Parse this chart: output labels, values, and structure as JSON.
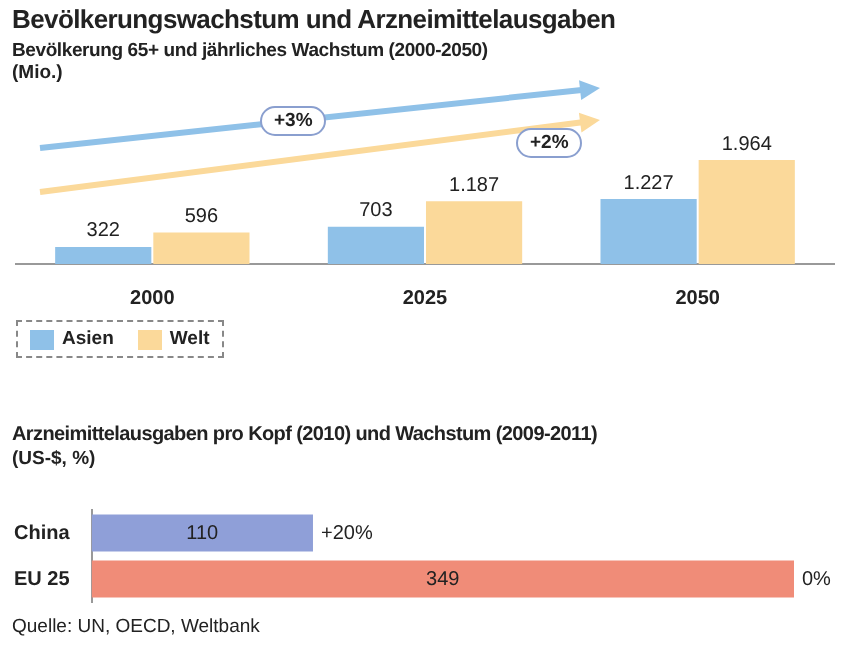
{
  "chart_data": [
    {
      "type": "bar",
      "title": "Bevölkerungswachstum und Arzneimittelausgaben",
      "subtitle": "Bevölkerung 65+ und jährliches Wachstum (2000-2050)",
      "ylabel": "(Mio.)",
      "categories": [
        "2000",
        "2025",
        "2050"
      ],
      "series": [
        {
          "name": "Asien",
          "color": "#8fc1e8",
          "values": [
            322,
            703,
            1227
          ],
          "value_labels": [
            "322",
            "703",
            "1.227"
          ]
        },
        {
          "name": "Welt",
          "color": "#fbd99a",
          "values": [
            596,
            1187,
            1964
          ],
          "value_labels": [
            "596",
            "1.187",
            "1.964"
          ]
        }
      ],
      "annotations": [
        "+3%",
        "+2%"
      ],
      "legend": "bottom left",
      "tick_labels": "x"
    },
    {
      "type": "bar",
      "orientation": "horizontal",
      "title": "Arzneimittelausgaben pro Kopf (2010) und Wachstum (2009-2011)",
      "subtitle": "(US-$, %)",
      "categories": [
        "China",
        "EU 25"
      ],
      "values": [
        110,
        349
      ],
      "colors": [
        "#8f9fd8",
        "#f08c78"
      ],
      "data_labels": true,
      "tick_labels": "y",
      "annotations": [
        {
          "text": "+20%",
          "x": 110,
          "y": "China"
        },
        {
          "text": "0%",
          "x": 349,
          "y": "EU 25"
        },
        "Quelle: UN, OECD, Weltbank"
      ]
    }
  ]
}
